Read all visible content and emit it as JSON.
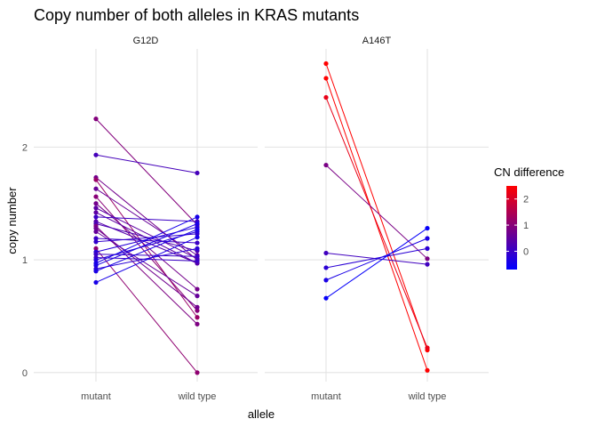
{
  "chart_data": {
    "type": "line",
    "title": "Copy number of both alleles in KRAS mutants",
    "xlabel": "allele",
    "ylabel": "copy number",
    "categories": [
      "mutant",
      "wild type"
    ],
    "yticks": [
      0,
      1,
      2
    ],
    "ylim": [
      -0.08,
      2.87
    ],
    "grid": true,
    "legend": {
      "title": "CN difference",
      "position": "right",
      "ticks": [
        0,
        1,
        2
      ],
      "range": [
        -0.7,
        2.5
      ],
      "colors": {
        "low": "#0000ff",
        "high": "#ff0000"
      }
    },
    "panels": [
      {
        "name": "G12D",
        "pairs": [
          [
            2.25,
            1.31
          ],
          [
            1.93,
            1.77
          ],
          [
            1.73,
            1.0
          ],
          [
            1.71,
            0.49
          ],
          [
            1.63,
            1.04
          ],
          [
            1.56,
            0.55
          ],
          [
            1.5,
            0.74
          ],
          [
            1.46,
            1.01
          ],
          [
            1.42,
            0.97
          ],
          [
            1.38,
            1.34
          ],
          [
            1.34,
            0.97
          ],
          [
            1.32,
            1.08
          ],
          [
            1.3,
            0.43
          ],
          [
            1.28,
            0.58
          ],
          [
            1.25,
            0.68
          ],
          [
            1.19,
            1.15
          ],
          [
            1.16,
            1.23
          ],
          [
            1.1,
            0.0
          ],
          [
            1.07,
            1.29
          ],
          [
            1.05,
            1.03
          ],
          [
            1.02,
            0.99
          ],
          [
            1.0,
            1.25
          ],
          [
            0.97,
            1.38
          ],
          [
            0.95,
            1.32
          ],
          [
            0.92,
            1.1
          ],
          [
            0.9,
            1.27
          ],
          [
            0.8,
            1.2
          ]
        ]
      },
      {
        "name": "A146T",
        "pairs": [
          [
            2.74,
            0.2
          ],
          [
            2.61,
            0.02
          ],
          [
            2.44,
            0.22
          ],
          [
            1.84,
            1.01
          ],
          [
            1.06,
            0.96
          ],
          [
            0.93,
            1.1
          ],
          [
            0.82,
            1.19
          ],
          [
            0.66,
            1.28
          ]
        ]
      }
    ]
  }
}
